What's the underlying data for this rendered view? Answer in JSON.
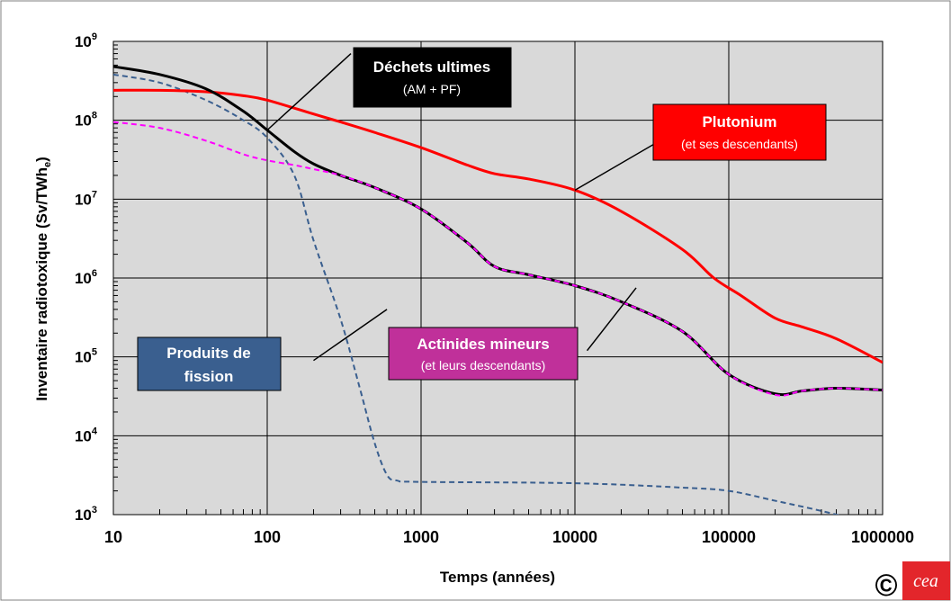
{
  "chart_data": {
    "type": "line",
    "x_scale": "log",
    "y_scale": "log",
    "xlim": [
      10,
      1000000
    ],
    "ylim": [
      1000,
      1000000000
    ],
    "grid": true,
    "background_color": "#d9d9d9",
    "xlabel": "Temps (années)",
    "ylabel": "Inventaire radiotoxique (Sv/TWh",
    "ylabel_subscript": "e",
    "ylabel_suffix": ")",
    "x_ticks": [
      10,
      100,
      1000,
      10000,
      100000,
      1000000
    ],
    "x_tick_labels": [
      "10",
      "100",
      "1000",
      "10000",
      "100000",
      "1000000"
    ],
    "y_ticks": [
      1000,
      10000,
      100000,
      1000000,
      10000000,
      100000000,
      1000000000
    ],
    "y_tick_labels": [
      {
        "base": "10",
        "exp": "3"
      },
      {
        "base": "10",
        "exp": "4"
      },
      {
        "base": "10",
        "exp": "5"
      },
      {
        "base": "10",
        "exp": "6"
      },
      {
        "base": "10",
        "exp": "7"
      },
      {
        "base": "10",
        "exp": "8"
      },
      {
        "base": "10",
        "exp": "9"
      }
    ],
    "series": [
      {
        "name": "Plutonium",
        "color": "#ff0000",
        "style": "solid",
        "points": [
          [
            10,
            240000000
          ],
          [
            20,
            240000000
          ],
          [
            40,
            230000000
          ],
          [
            70,
            205000000
          ],
          [
            100,
            180000000
          ],
          [
            200,
            120000000
          ],
          [
            300,
            95000000
          ],
          [
            500,
            70000000
          ],
          [
            1000,
            45000000
          ],
          [
            2000,
            27000000
          ],
          [
            3000,
            21000000
          ],
          [
            5000,
            18000000
          ],
          [
            10000,
            13000000
          ],
          [
            20000,
            7000000
          ],
          [
            50000,
            2300000
          ],
          [
            80000,
            1000000
          ],
          [
            120000,
            600000
          ],
          [
            200000,
            310000
          ],
          [
            300000,
            240000
          ],
          [
            500000,
            170000
          ],
          [
            1000000,
            85000
          ]
        ]
      },
      {
        "name": "Déchets ultimes",
        "color": "#000000",
        "style": "solid",
        "points": [
          [
            10,
            480000000
          ],
          [
            20,
            380000000
          ],
          [
            40,
            250000000
          ],
          [
            70,
            130000000
          ],
          [
            100,
            75000000
          ],
          [
            150,
            40000000
          ],
          [
            200,
            28000000
          ],
          [
            300,
            20000000
          ],
          [
            500,
            14000000
          ],
          [
            1000,
            7500000
          ],
          [
            2000,
            2800000
          ],
          [
            3000,
            1400000
          ],
          [
            5000,
            1100000
          ],
          [
            10000,
            800000
          ],
          [
            20000,
            500000
          ],
          [
            50000,
            210000
          ],
          [
            100000,
            60000
          ],
          [
            200000,
            34000
          ],
          [
            300000,
            37000
          ],
          [
            500000,
            40000
          ],
          [
            1000000,
            38000
          ]
        ]
      },
      {
        "name": "Actinides mineurs",
        "color": "#ff00ff",
        "style": "dashed",
        "points": [
          [
            10,
            95000000
          ],
          [
            20,
            80000000
          ],
          [
            40,
            55000000
          ],
          [
            70,
            37000000
          ],
          [
            100,
            31000000
          ],
          [
            150,
            27000000
          ],
          [
            200,
            24000000
          ],
          [
            300,
            20000000
          ],
          [
            500,
            14000000
          ],
          [
            1000,
            7500000
          ],
          [
            2000,
            2800000
          ],
          [
            3000,
            1400000
          ],
          [
            5000,
            1100000
          ],
          [
            10000,
            800000
          ],
          [
            20000,
            500000
          ],
          [
            50000,
            210000
          ],
          [
            100000,
            60000
          ],
          [
            200000,
            33000
          ],
          [
            300000,
            37000
          ],
          [
            500000,
            40000
          ],
          [
            1000000,
            38000
          ]
        ]
      },
      {
        "name": "Produits de fission",
        "color": "#3a5f8f",
        "style": "dashed",
        "points": [
          [
            10,
            380000000
          ],
          [
            20,
            300000000
          ],
          [
            40,
            180000000
          ],
          [
            70,
            100000000
          ],
          [
            100,
            60000000
          ],
          [
            150,
            20000000
          ],
          [
            200,
            3000000
          ],
          [
            300,
            300000
          ],
          [
            400,
            40000
          ],
          [
            500,
            8000
          ],
          [
            600,
            3200
          ],
          [
            700,
            2700
          ],
          [
            1000,
            2600
          ],
          [
            10000,
            2500
          ],
          [
            50000,
            2200
          ],
          [
            100000,
            2000
          ],
          [
            200000,
            1500
          ],
          [
            500000,
            1000
          ],
          [
            1000000,
            650
          ]
        ]
      }
    ],
    "annotations": [
      {
        "key": "dechets",
        "title": "Déchets ultimes",
        "subtitle": "(AM + PF)",
        "box_color": "#000000",
        "title_color": "#ffffff",
        "subtitle_color": "#ffffff",
        "pointer_from": [
          350,
          700000000
        ],
        "pointer_to": [
          100,
          75000000
        ]
      },
      {
        "key": "plutonium",
        "title": "Plutonium",
        "subtitle": "(et ses descendants)",
        "box_color": "#ff0000",
        "title_color": "#ffffff",
        "subtitle_color": "#ffffff",
        "pointer_from": [
          55000,
          90000000
        ],
        "pointer_to": [
          10000,
          13000000
        ]
      },
      {
        "key": "fission",
        "title": "Produits de",
        "title2": "fission",
        "box_color": "#3a5f8f",
        "title_color": "#ffffff",
        "pointer_from": [
          200,
          90000
        ],
        "pointer_to": [
          600,
          400000
        ]
      },
      {
        "key": "actinides",
        "title": "Actinides mineurs",
        "subtitle": "(et leurs descendants)",
        "box_color": "#c0309a",
        "title_color": "#ffffff",
        "subtitle_color": "#ffffff",
        "pointer_from": [
          12000,
          120000
        ],
        "pointer_to": [
          25000,
          750000
        ]
      }
    ]
  },
  "copyright_symbol": "©",
  "logo": {
    "text": "cea",
    "color": "#e3262b"
  }
}
